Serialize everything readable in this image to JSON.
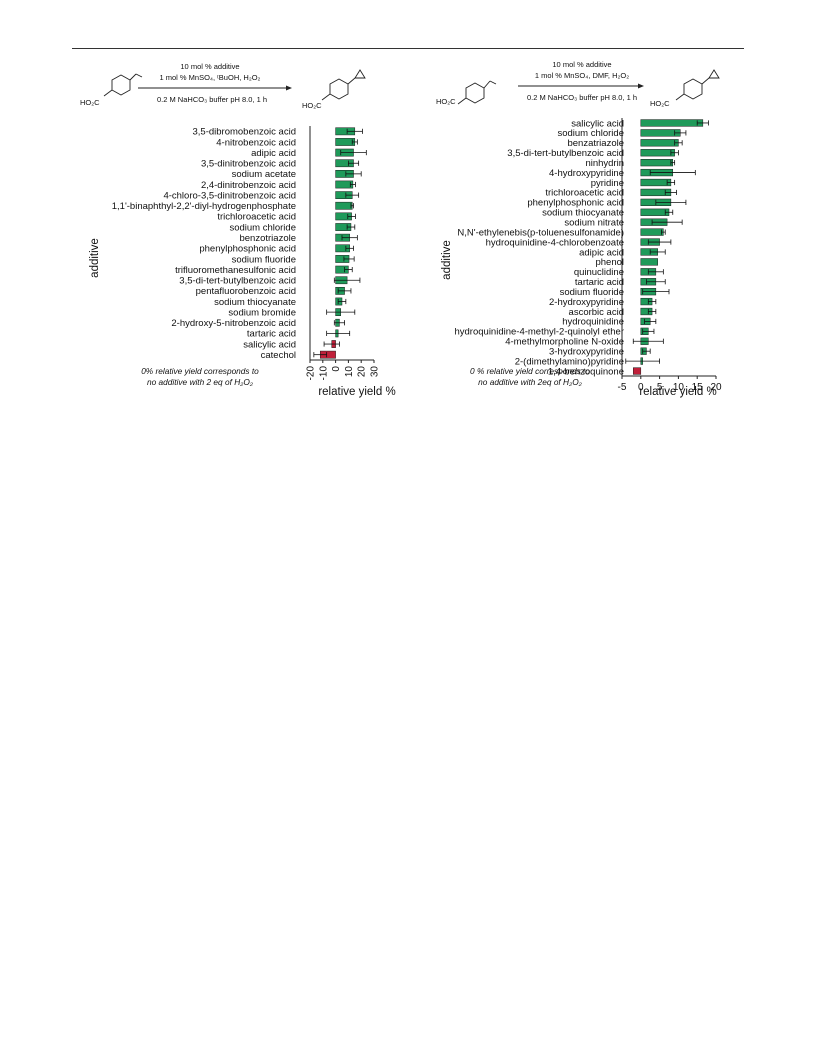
{
  "chart_data": [
    {
      "type": "bar",
      "orientation": "horizontal",
      "reaction": {
        "reagent_line1": "10 mol % additive",
        "reagent_line2": "1 mol % MnSO₄, ᵗBuOH, H₂O₂",
        "condition_line": "0.2 M NaHCO₃ buffer pH 8.0, 1 h",
        "substrate_label": "HO₂C",
        "product_label": "HO₂C"
      },
      "xlabel": "relative yield %",
      "ylabel": "additive",
      "xlim": [
        -20,
        30
      ],
      "xticks": [
        -20,
        -10,
        0,
        10,
        20,
        30
      ],
      "note_line1": "0% relative yield corresponds to",
      "note_line2": "no additive with 2 eq of H₂O₂",
      "positive_color": "#1f9a5a",
      "negative_color": "#c0203a",
      "categories": [
        "3,5-dibromobenzoic acid",
        "4-nitrobenzoic acid",
        "adipic acid",
        "3,5-dinitrobenzoic acid",
        "sodium acetate",
        "2,4-dinitrobenzoic acid",
        "4-chloro-3,5-dinitrobenzoic acid",
        "1,1'-binaphthyl-2,2'-diyl-hydrogenphosphate",
        "trichloroacetic acid",
        "sodium chloride",
        "benzotriazole",
        "phenylphosphonic acid",
        "sodium fluoride",
        "trifluoromethanesulfonic acid",
        "3,5-di-tert-butylbenzoic acid",
        "pentafluorobenzoic acid",
        "sodium thiocyanate",
        "sodium bromide",
        "2-hydroxy-5-nitrobenzoic acid",
        "tartaric acid",
        "salicylic acid",
        "catechol"
      ],
      "values": [
        15,
        15,
        14,
        14,
        14,
        13.5,
        13,
        13,
        12.5,
        12,
        11,
        11,
        10.5,
        10,
        9,
        7,
        5,
        4,
        3,
        2,
        -3,
        -12
      ],
      "errors": [
        6,
        2,
        10,
        4,
        6,
        2,
        5,
        1,
        3,
        3,
        6,
        3,
        4,
        3,
        10,
        5,
        3,
        11,
        4,
        9,
        6,
        5
      ]
    },
    {
      "type": "bar",
      "orientation": "horizontal",
      "reaction": {
        "reagent_line1": "10 mol % additive",
        "reagent_line2": "1 mol % MnSO₄, DMF, H₂O₂",
        "condition_line": "0.2 M NaHCO₃ buffer pH 8.0, 1 h",
        "substrate_label": "HO₂C",
        "product_label": "HO₂C"
      },
      "xlabel": "relative yield %",
      "ylabel": "additive",
      "xlim": [
        -5,
        20
      ],
      "xticks": [
        -5,
        0,
        5,
        10,
        15,
        20
      ],
      "note_line1": "0 % relative yield corresponds to",
      "note_line2": "no additive with 2eq of H₂O₂",
      "positive_color": "#1f9a5a",
      "negative_color": "#c0203a",
      "categories": [
        "salicylic acid",
        "sodium chloride",
        "benzatriazole",
        "3,5-di-tert-butylbenzoic acid",
        "ninhydrin",
        "4-hydroxypyridine",
        "pyridine",
        "trichloroacetic acid",
        "phenylphosphonic acid",
        "sodium thiocyanate",
        "sodium nitrate",
        "N,N'-ethylenebis(p-toluenesulfonamide)",
        "hydroquinidine-4-chlorobenzoate",
        "adipic acid",
        "phenol",
        "quinuclidine",
        "tartaric acid",
        "sodium fluoride",
        "2-hydroxypyridine",
        "ascorbic acid",
        "hydroquinidine",
        "hydroquinidine-4-methyl-2-quinolyl ether",
        "4-methylmorpholine N-oxide",
        "3-hydroxypyridine",
        "2-(dimethylamino)pyridine",
        "1,4-benzoquinone"
      ],
      "values": [
        16.5,
        10.5,
        10,
        9,
        8.5,
        8.5,
        8,
        8,
        8,
        7.5,
        7,
        6,
        5,
        4.5,
        4.5,
        4,
        4,
        4,
        3,
        3,
        2.5,
        2,
        2,
        1.5,
        0.5,
        -2
      ],
      "errors": [
        1.5,
        1.5,
        1,
        1,
        0.5,
        6,
        1,
        1.5,
        4,
        1,
        4,
        0.5,
        3,
        2,
        0,
        2,
        2.5,
        3.5,
        1,
        1,
        1.5,
        1.5,
        4,
        1,
        4.5,
        0
      ]
    }
  ]
}
